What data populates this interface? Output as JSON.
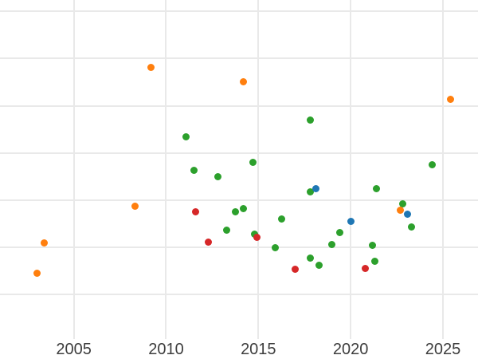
{
  "styles": {
    "background_color": "#ffffff",
    "grid_color": "#e9e9e9",
    "tick_label_color": "#3d3d3d"
  },
  "chart_data": {
    "type": "scatter",
    "title": "",
    "xlabel": "",
    "ylabel": "",
    "grid": true,
    "legend_position": "none",
    "x_ticks": [
      2005,
      2010,
      2015,
      2020,
      2025
    ],
    "x_tick_labels": [
      "2005",
      "2010",
      "2015",
      "2020",
      "2025"
    ],
    "xlim": [
      2001.0,
      2026.9
    ],
    "ylim": [
      0.06,
      7.24
    ],
    "y_gridlines": [
      1,
      2,
      3,
      4,
      5,
      6,
      7
    ],
    "y_tick_labels": [],
    "y_scale_note": "no y-axis tick labels visible; y values estimated in gridline units (lowest visible gridline = 1, one unit per gridline)",
    "marker_diameter_px": 9,
    "series": [
      {
        "name": "green",
        "color": "#2ca02c",
        "points": [
          [
            2011.1,
            4.34
          ],
          [
            2011.5,
            3.63
          ],
          [
            2012.8,
            3.49
          ],
          [
            2013.3,
            2.36
          ],
          [
            2013.75,
            2.75
          ],
          [
            2014.2,
            2.82
          ],
          [
            2014.7,
            3.81
          ],
          [
            2014.8,
            2.29
          ],
          [
            2015.9,
            1.99
          ],
          [
            2016.25,
            2.61
          ],
          [
            2017.8,
            4.69
          ],
          [
            2017.8,
            3.17
          ],
          [
            2017.8,
            1.77
          ],
          [
            2018.3,
            1.62
          ],
          [
            2019.0,
            2.07
          ],
          [
            2019.4,
            2.31
          ],
          [
            2021.2,
            2.04
          ],
          [
            2021.3,
            1.7
          ],
          [
            2021.4,
            3.24
          ],
          [
            2022.8,
            2.92
          ],
          [
            2023.3,
            2.43
          ],
          [
            2024.4,
            3.75
          ]
        ]
      },
      {
        "name": "red",
        "color": "#d62728",
        "points": [
          [
            2011.6,
            2.75
          ],
          [
            2012.3,
            2.12
          ],
          [
            2014.9,
            2.21
          ],
          [
            2017.0,
            1.53
          ],
          [
            2020.8,
            1.55
          ]
        ]
      },
      {
        "name": "orange",
        "color": "#ff7f0e",
        "points": [
          [
            2003.0,
            1.46
          ],
          [
            2003.4,
            2.09
          ],
          [
            2008.3,
            2.88
          ],
          [
            2009.2,
            5.81
          ],
          [
            2014.2,
            5.5
          ],
          [
            2022.7,
            2.78
          ],
          [
            2025.4,
            5.13
          ]
        ]
      },
      {
        "name": "blue",
        "color": "#1f77b4",
        "points": [
          [
            2018.1,
            3.24
          ],
          [
            2020.0,
            2.55
          ],
          [
            2023.1,
            2.7
          ]
        ]
      }
    ]
  }
}
